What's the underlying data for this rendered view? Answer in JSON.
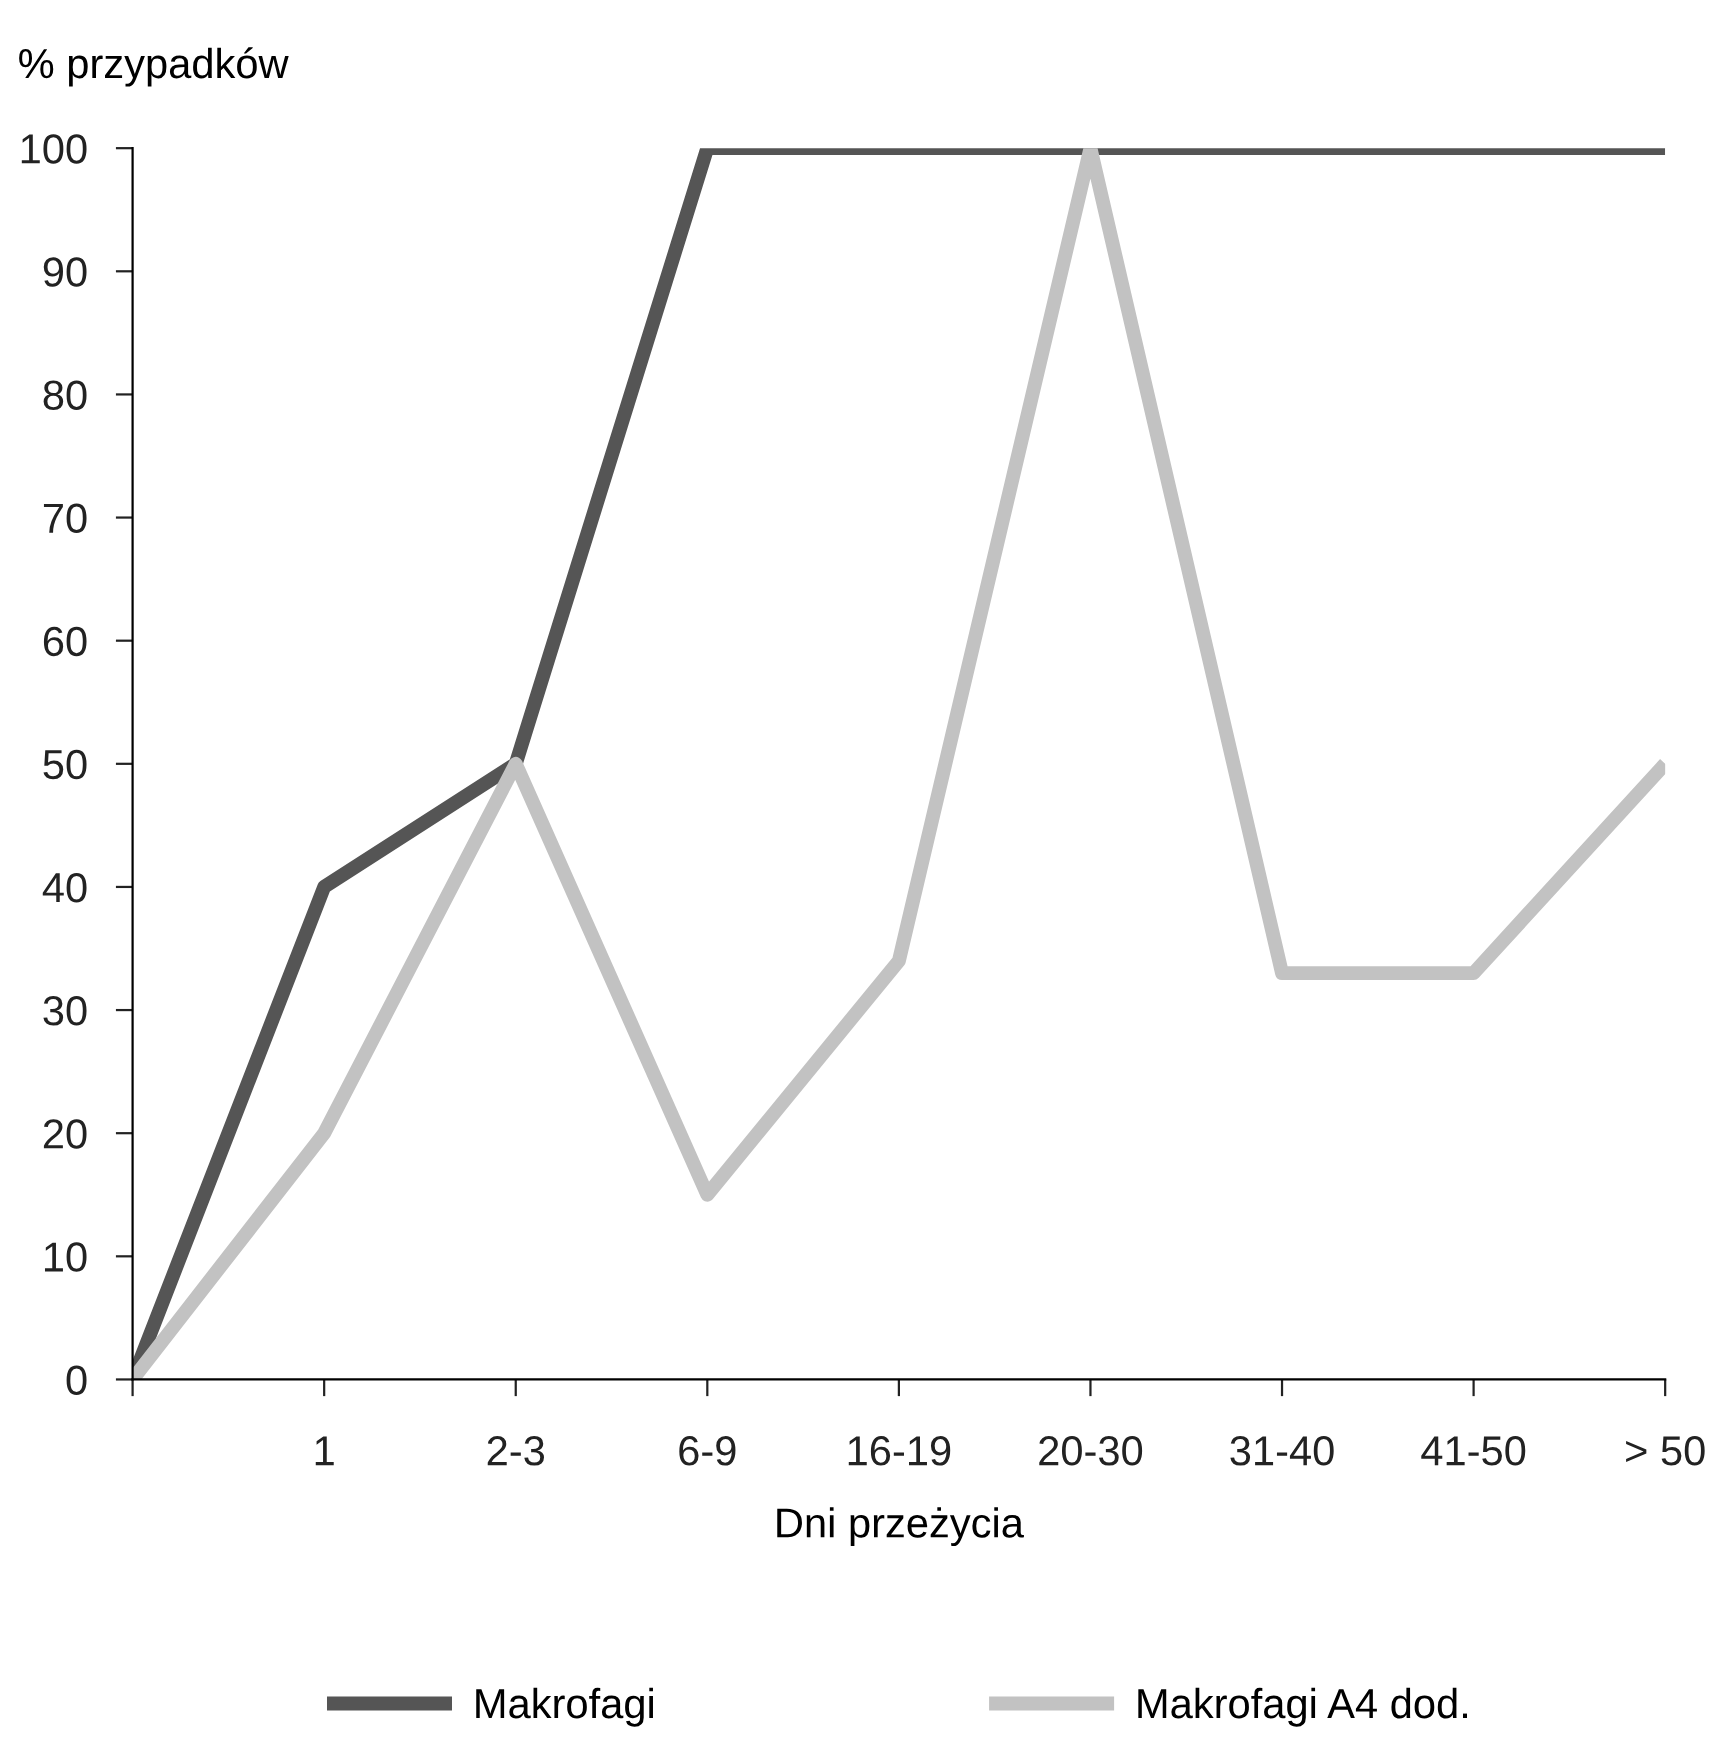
{
  "chart_data": {
    "type": "line",
    "ylabel": "% przypadków",
    "xlabel": "Dni przeżycia",
    "categories": [
      null,
      "1",
      "2-3",
      "6-9",
      "16-19",
      "20-30",
      "31-40",
      "41-50",
      "> 50"
    ],
    "series": [
      {
        "name": "Makrofagi",
        "color": "#555555",
        "values": [
          0,
          40,
          50,
          100,
          100,
          100,
          100,
          100,
          100
        ]
      },
      {
        "name": "Makrofagi A4 dod.",
        "color": "#c2c2c2",
        "values": [
          0,
          20,
          50,
          15,
          34,
          100,
          33,
          33,
          50
        ]
      }
    ],
    "ylim": [
      0,
      100
    ],
    "yticks": [
      0,
      10,
      20,
      30,
      40,
      50,
      60,
      70,
      80,
      90,
      100
    ],
    "grid": false,
    "legend": "bottom",
    "marker": "none",
    "line_style": "solid"
  }
}
